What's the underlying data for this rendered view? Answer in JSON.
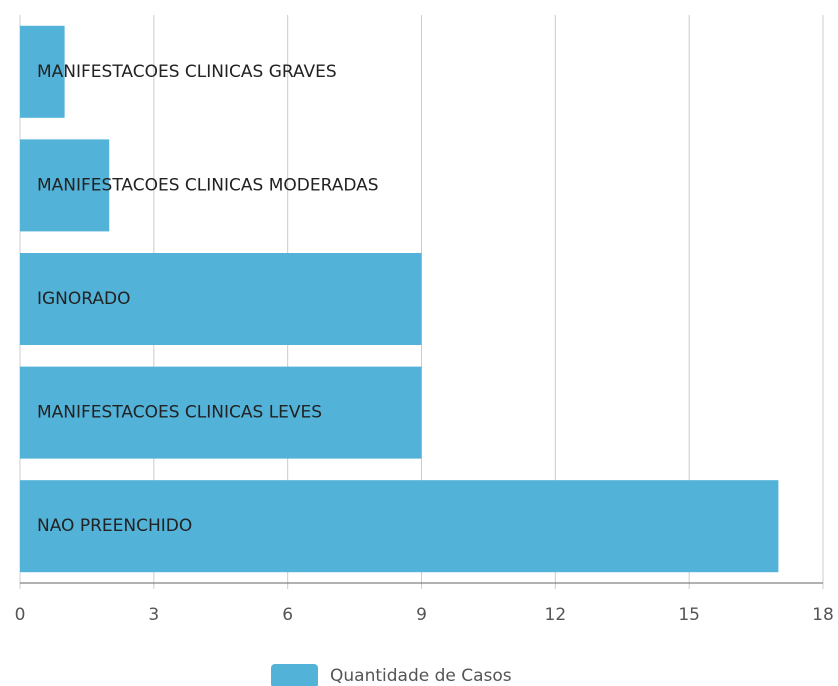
{
  "chart_data": {
    "type": "bar",
    "orientation": "horizontal",
    "categories": [
      "MANIFESTACOES CLINICAS GRAVES",
      "MANIFESTACOES CLINICAS MODERADAS",
      "IGNORADO",
      "MANIFESTACOES CLINICAS LEVES",
      "NAO PREENCHIDO"
    ],
    "series": [
      {
        "name": "Quantidade de Casos",
        "color": "#52b2d8",
        "values": [
          1,
          2,
          9,
          9,
          17
        ]
      }
    ],
    "xlim": [
      0,
      18
    ],
    "xticks": [
      0,
      3,
      6,
      9,
      12,
      15,
      18
    ],
    "grid": true,
    "legend": "bottom"
  }
}
